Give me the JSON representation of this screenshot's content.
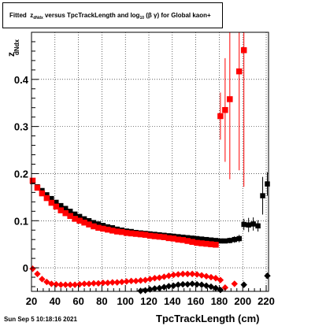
{
  "title_prefix": "Fitted",
  "title_symbol": "z",
  "title_symbol_sub": "dNdx",
  "title_middle": "versus TpcTrackLength and log",
  "title_log_sub": "10",
  "title_suffix": "(β γ) for Global kaon+",
  "timestamp": "Sun Sep  5 10:18:16 2021",
  "chart_data": {
    "type": "scatter",
    "title": "Fitted z_dNdx versus TpcTrackLength and log10(β γ) for Global kaon+",
    "xlabel": "TpcTrackLength (cm)",
    "ylabel": "z_dNdx",
    "ylabel_symbol": "z",
    "ylabel_sub": "dNdx",
    "xlim": [
      20,
      222
    ],
    "ylim": [
      -0.05,
      0.5
    ],
    "xticks": [
      20,
      40,
      60,
      80,
      100,
      120,
      140,
      160,
      180,
      200,
      220
    ],
    "yticks": [
      0,
      0.1,
      0.2,
      0.3,
      0.4
    ],
    "ytick_labels": [
      "0",
      "0.1",
      "0.2",
      "0.3",
      "0.4"
    ],
    "grid": true,
    "colors": {
      "black": "#000000",
      "red": "#ff0000"
    },
    "series": [
      {
        "color": "black",
        "marker": "square",
        "points": [
          [
            21,
            0.183
          ],
          [
            25,
            0.172
          ],
          [
            29,
            0.164
          ],
          [
            33,
            0.155
          ],
          [
            37,
            0.147
          ],
          [
            41,
            0.139
          ],
          [
            45,
            0.132
          ],
          [
            49,
            0.126
          ],
          [
            53,
            0.12
          ],
          [
            57,
            0.114
          ],
          [
            61,
            0.109
          ],
          [
            65,
            0.104
          ],
          [
            69,
            0.1
          ],
          [
            73,
            0.096
          ],
          [
            77,
            0.093
          ],
          [
            81,
            0.09
          ],
          [
            85,
            0.087
          ],
          [
            89,
            0.085
          ],
          [
            93,
            0.082
          ],
          [
            97,
            0.08
          ],
          [
            101,
            0.078
          ],
          [
            105,
            0.077
          ],
          [
            109,
            0.075
          ],
          [
            113,
            0.074
          ],
          [
            117,
            0.073
          ],
          [
            121,
            0.072
          ],
          [
            125,
            0.071
          ],
          [
            129,
            0.07
          ],
          [
            133,
            0.069
          ],
          [
            137,
            0.068
          ],
          [
            141,
            0.067
          ],
          [
            145,
            0.066
          ],
          [
            149,
            0.065
          ],
          [
            153,
            0.064
          ],
          [
            157,
            0.063
          ],
          [
            161,
            0.062
          ],
          [
            165,
            0.061
          ],
          [
            169,
            0.06
          ],
          [
            173,
            0.059
          ],
          [
            177,
            0.058
          ],
          [
            181,
            0.057
          ],
          [
            185,
            0.057
          ],
          [
            189,
            0.058
          ],
          [
            193,
            0.06
          ],
          [
            197,
            0.062
          ],
          [
            201,
            0.092
          ],
          [
            205,
            0.091
          ],
          [
            209,
            0.093
          ],
          [
            213,
            0.089
          ],
          [
            217,
            0.153
          ],
          [
            221,
            0.178
          ]
        ],
        "errors": [
          [
            181,
            0.004
          ],
          [
            185,
            0.005
          ],
          [
            189,
            0.006
          ],
          [
            193,
            0.007
          ],
          [
            197,
            0.008
          ],
          [
            201,
            0.012
          ],
          [
            205,
            0.015
          ],
          [
            209,
            0.014
          ],
          [
            213,
            0.012
          ],
          [
            217,
            0.04
          ],
          [
            221,
            0.025
          ]
        ]
      },
      {
        "color": "black",
        "marker": "diamond",
        "points": [
          [
            113,
            -0.049
          ],
          [
            117,
            -0.048
          ],
          [
            121,
            -0.046
          ],
          [
            125,
            -0.044
          ],
          [
            129,
            -0.043
          ],
          [
            133,
            -0.041
          ],
          [
            137,
            -0.039
          ],
          [
            141,
            -0.038
          ],
          [
            145,
            -0.036
          ],
          [
            149,
            -0.035
          ],
          [
            153,
            -0.035
          ],
          [
            157,
            -0.034
          ],
          [
            161,
            -0.035
          ],
          [
            165,
            -0.036
          ],
          [
            169,
            -0.038
          ],
          [
            173,
            -0.04
          ],
          [
            177,
            -0.043
          ],
          [
            181,
            -0.047
          ],
          [
            201,
            -0.036
          ],
          [
            221,
            -0.017
          ]
        ]
      },
      {
        "color": "red",
        "marker": "square",
        "points": [
          [
            21,
            0.185
          ],
          [
            25,
            0.17
          ],
          [
            29,
            0.158
          ],
          [
            33,
            0.148
          ],
          [
            37,
            0.138
          ],
          [
            41,
            0.13
          ],
          [
            45,
            0.122
          ],
          [
            49,
            0.116
          ],
          [
            53,
            0.11
          ],
          [
            57,
            0.104
          ],
          [
            61,
            0.1
          ],
          [
            65,
            0.096
          ],
          [
            69,
            0.092
          ],
          [
            73,
            0.088
          ],
          [
            77,
            0.085
          ],
          [
            81,
            0.083
          ],
          [
            85,
            0.081
          ],
          [
            89,
            0.079
          ],
          [
            93,
            0.077
          ],
          [
            97,
            0.076
          ],
          [
            101,
            0.074
          ],
          [
            105,
            0.073
          ],
          [
            109,
            0.072
          ],
          [
            113,
            0.071
          ],
          [
            117,
            0.07
          ],
          [
            121,
            0.068
          ],
          [
            125,
            0.067
          ],
          [
            129,
            0.066
          ],
          [
            133,
            0.065
          ],
          [
            137,
            0.063
          ],
          [
            141,
            0.062
          ],
          [
            145,
            0.06
          ],
          [
            149,
            0.059
          ],
          [
            153,
            0.057
          ],
          [
            157,
            0.055
          ],
          [
            161,
            0.053
          ],
          [
            165,
            0.052
          ],
          [
            169,
            0.051
          ],
          [
            173,
            0.05
          ],
          [
            177,
            0.049
          ],
          [
            181,
            0.322
          ],
          [
            185,
            0.335
          ],
          [
            189,
            0.358
          ],
          [
            197,
            0.417
          ],
          [
            201,
            0.462
          ]
        ],
        "errors": [
          [
            181,
            0.05
          ],
          [
            185,
            0.11
          ],
          [
            189,
            0.17
          ],
          [
            197,
            0.21
          ],
          [
            201,
            0.29
          ]
        ]
      },
      {
        "color": "red",
        "marker": "diamond",
        "points": [
          [
            21,
            -0.002
          ],
          [
            25,
            -0.013
          ],
          [
            29,
            -0.024
          ],
          [
            33,
            -0.03
          ],
          [
            37,
            -0.034
          ],
          [
            41,
            -0.035
          ],
          [
            45,
            -0.036
          ],
          [
            49,
            -0.036
          ],
          [
            53,
            -0.036
          ],
          [
            57,
            -0.036
          ],
          [
            61,
            -0.035
          ],
          [
            65,
            -0.034
          ],
          [
            69,
            -0.034
          ],
          [
            73,
            -0.033
          ],
          [
            77,
            -0.033
          ],
          [
            81,
            -0.032
          ],
          [
            85,
            -0.032
          ],
          [
            89,
            -0.031
          ],
          [
            93,
            -0.031
          ],
          [
            97,
            -0.03
          ],
          [
            101,
            -0.029
          ],
          [
            105,
            -0.028
          ],
          [
            109,
            -0.028
          ],
          [
            113,
            -0.027
          ],
          [
            117,
            -0.026
          ],
          [
            121,
            -0.024
          ],
          [
            125,
            -0.022
          ],
          [
            129,
            -0.021
          ],
          [
            133,
            -0.019
          ],
          [
            137,
            -0.017
          ],
          [
            141,
            -0.015
          ],
          [
            145,
            -0.014
          ],
          [
            149,
            -0.013
          ],
          [
            153,
            -0.013
          ],
          [
            157,
            -0.013
          ],
          [
            161,
            -0.014
          ],
          [
            165,
            -0.016
          ],
          [
            169,
            -0.018
          ],
          [
            173,
            -0.02
          ],
          [
            177,
            -0.022
          ],
          [
            181,
            -0.026
          ],
          [
            185,
            -0.042
          ],
          [
            193,
            -0.034
          ]
        ]
      }
    ]
  }
}
